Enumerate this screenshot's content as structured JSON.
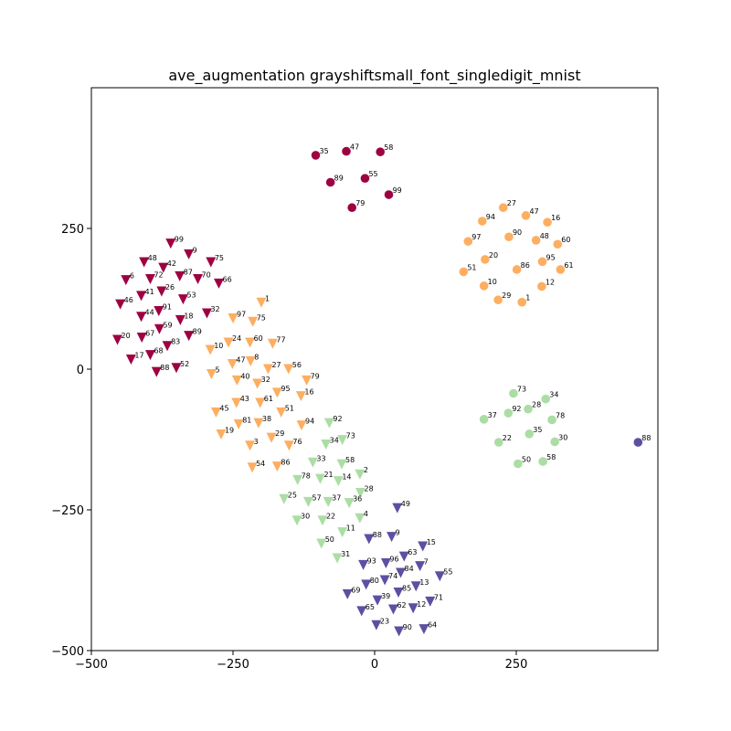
{
  "chart_data": {
    "type": "scatter",
    "title": "ave_augmentation grayshiftsmall_font_singledigit_mnist",
    "xlabel": "",
    "ylabel": "",
    "xlim": [
      -500,
      500
    ],
    "ylim": [
      -500,
      500
    ],
    "xticks": [
      -500,
      -250,
      0,
      250
    ],
    "yticks": [
      -500,
      -250,
      0,
      250
    ],
    "xtick_labels": [
      "−500",
      "−250",
      "0",
      "250"
    ],
    "ytick_labels": [
      "−500",
      "−250",
      "0",
      "250"
    ],
    "grid": false,
    "colors": {
      "darkred": "#9e0142",
      "orange": "#fdae61",
      "lightgreen": "#abdda4",
      "purple": "#5e4fa2"
    },
    "series": [
      {
        "marker": "circle",
        "color": "darkred",
        "points": [
          {
            "x": -104,
            "y": 380,
            "label": "35"
          },
          {
            "x": -50,
            "y": 387,
            "label": "47"
          },
          {
            "x": 10,
            "y": 386,
            "label": "58"
          },
          {
            "x": -78,
            "y": 332,
            "label": "89"
          },
          {
            "x": -17,
            "y": 339,
            "label": "55"
          },
          {
            "x": -40,
            "y": 287,
            "label": "79"
          },
          {
            "x": 25,
            "y": 310,
            "label": "99"
          }
        ]
      },
      {
        "marker": "circle",
        "color": "orange",
        "points": [
          {
            "x": 227,
            "y": 287,
            "label": "27"
          },
          {
            "x": 267,
            "y": 273,
            "label": "47"
          },
          {
            "x": 190,
            "y": 263,
            "label": "94"
          },
          {
            "x": 305,
            "y": 261,
            "label": "16"
          },
          {
            "x": 237,
            "y": 235,
            "label": "90"
          },
          {
            "x": 285,
            "y": 229,
            "label": "48"
          },
          {
            "x": 165,
            "y": 227,
            "label": "97"
          },
          {
            "x": 323,
            "y": 222,
            "label": "60"
          },
          {
            "x": 195,
            "y": 195,
            "label": "20"
          },
          {
            "x": 296,
            "y": 191,
            "label": "95"
          },
          {
            "x": 157,
            "y": 173,
            "label": "51"
          },
          {
            "x": 251,
            "y": 177,
            "label": "86"
          },
          {
            "x": 328,
            "y": 177,
            "label": "61"
          },
          {
            "x": 193,
            "y": 148,
            "label": "10"
          },
          {
            "x": 295,
            "y": 147,
            "label": "12"
          },
          {
            "x": 218,
            "y": 123,
            "label": "29"
          },
          {
            "x": 260,
            "y": 119,
            "label": "1"
          }
        ]
      },
      {
        "marker": "circle",
        "color": "lightgreen",
        "points": [
          {
            "x": 245,
            "y": -43,
            "label": "73"
          },
          {
            "x": 302,
            "y": -53,
            "label": "34"
          },
          {
            "x": 271,
            "y": -71,
            "label": "28"
          },
          {
            "x": 236,
            "y": -78,
            "label": "92"
          },
          {
            "x": 193,
            "y": -89,
            "label": "37"
          },
          {
            "x": 313,
            "y": -90,
            "label": "78"
          },
          {
            "x": 273,
            "y": -115,
            "label": "35"
          },
          {
            "x": 219,
            "y": -130,
            "label": "22"
          },
          {
            "x": 318,
            "y": -129,
            "label": "30"
          },
          {
            "x": 253,
            "y": -168,
            "label": "50"
          },
          {
            "x": 297,
            "y": -164,
            "label": "58"
          }
        ]
      },
      {
        "marker": "circle",
        "color": "purple",
        "points": [
          {
            "x": 465,
            "y": -130,
            "label": "88"
          }
        ]
      },
      {
        "marker": "triangle",
        "color": "darkred",
        "points": [
          {
            "x": -360,
            "y": 223,
            "label": "99"
          },
          {
            "x": -328,
            "y": 204,
            "label": "9"
          },
          {
            "x": -289,
            "y": 190,
            "label": "75"
          },
          {
            "x": -407,
            "y": 190,
            "label": "48"
          },
          {
            "x": -373,
            "y": 180,
            "label": "42"
          },
          {
            "x": -344,
            "y": 165,
            "label": "87"
          },
          {
            "x": -312,
            "y": 160,
            "label": "70"
          },
          {
            "x": -439,
            "y": 158,
            "label": "6"
          },
          {
            "x": -396,
            "y": 160,
            "label": "72"
          },
          {
            "x": -275,
            "y": 152,
            "label": "66"
          },
          {
            "x": -376,
            "y": 138,
            "label": "26"
          },
          {
            "x": -412,
            "y": 130,
            "label": "41"
          },
          {
            "x": -338,
            "y": 124,
            "label": "53"
          },
          {
            "x": -449,
            "y": 115,
            "label": "46"
          },
          {
            "x": -381,
            "y": 103,
            "label": "91"
          },
          {
            "x": -296,
            "y": 99,
            "label": "32"
          },
          {
            "x": -412,
            "y": 93,
            "label": "44"
          },
          {
            "x": -343,
            "y": 87,
            "label": "18"
          },
          {
            "x": -380,
            "y": 71,
            "label": "59"
          },
          {
            "x": -328,
            "y": 59,
            "label": "89"
          },
          {
            "x": -454,
            "y": 52,
            "label": "20"
          },
          {
            "x": -411,
            "y": 56,
            "label": "67"
          },
          {
            "x": -366,
            "y": 41,
            "label": "83"
          },
          {
            "x": -396,
            "y": 25,
            "label": "68"
          },
          {
            "x": -430,
            "y": 17,
            "label": "17"
          },
          {
            "x": -350,
            "y": 2,
            "label": "52"
          },
          {
            "x": -385,
            "y": -5,
            "label": "88"
          }
        ]
      },
      {
        "marker": "triangle",
        "color": "orange",
        "points": [
          {
            "x": -200,
            "y": 118,
            "label": "1"
          },
          {
            "x": -250,
            "y": 90,
            "label": "97"
          },
          {
            "x": -215,
            "y": 84,
            "label": "75"
          },
          {
            "x": -258,
            "y": 47,
            "label": "24"
          },
          {
            "x": -220,
            "y": 47,
            "label": "60"
          },
          {
            "x": -180,
            "y": 45,
            "label": "77"
          },
          {
            "x": -290,
            "y": 34,
            "label": "10"
          },
          {
            "x": -251,
            "y": 9,
            "label": "47"
          },
          {
            "x": -219,
            "y": 14,
            "label": "8"
          },
          {
            "x": -188,
            "y": 0,
            "label": "27"
          },
          {
            "x": -152,
            "y": 0,
            "label": "56"
          },
          {
            "x": -288,
            "y": -9,
            "label": "5"
          },
          {
            "x": -243,
            "y": -20,
            "label": "40"
          },
          {
            "x": -207,
            "y": -26,
            "label": "32"
          },
          {
            "x": -120,
            "y": -20,
            "label": "79"
          },
          {
            "x": -172,
            "y": -42,
            "label": "95"
          },
          {
            "x": -130,
            "y": -48,
            "label": "16"
          },
          {
            "x": -244,
            "y": -60,
            "label": "43"
          },
          {
            "x": -202,
            "y": -60,
            "label": "61"
          },
          {
            "x": -280,
            "y": -77,
            "label": "45"
          },
          {
            "x": -165,
            "y": -77,
            "label": "51"
          },
          {
            "x": -240,
            "y": -98,
            "label": "81"
          },
          {
            "x": -205,
            "y": -96,
            "label": "38"
          },
          {
            "x": -129,
            "y": -100,
            "label": "94"
          },
          {
            "x": -271,
            "y": -116,
            "label": "19"
          },
          {
            "x": -182,
            "y": -122,
            "label": "29"
          },
          {
            "x": -220,
            "y": -136,
            "label": "3"
          },
          {
            "x": -151,
            "y": -136,
            "label": "76"
          },
          {
            "x": -216,
            "y": -175,
            "label": "54"
          },
          {
            "x": -172,
            "y": -173,
            "label": "86"
          }
        ]
      },
      {
        "marker": "triangle",
        "color": "lightgreen",
        "points": [
          {
            "x": -80,
            "y": -96,
            "label": "92"
          },
          {
            "x": -57,
            "y": -126,
            "label": "73"
          },
          {
            "x": -86,
            "y": -134,
            "label": "34"
          },
          {
            "x": -109,
            "y": -166,
            "label": "33"
          },
          {
            "x": -58,
            "y": -169,
            "label": "58"
          },
          {
            "x": -26,
            "y": -187,
            "label": "2"
          },
          {
            "x": -136,
            "y": -197,
            "label": "78"
          },
          {
            "x": -96,
            "y": -195,
            "label": "21"
          },
          {
            "x": -64,
            "y": -199,
            "label": "14"
          },
          {
            "x": -25,
            "y": -220,
            "label": "28"
          },
          {
            "x": -160,
            "y": -231,
            "label": "25"
          },
          {
            "x": -117,
            "y": -236,
            "label": "57"
          },
          {
            "x": -82,
            "y": -236,
            "label": "37"
          },
          {
            "x": -45,
            "y": -238,
            "label": "36"
          },
          {
            "x": -137,
            "y": -269,
            "label": "30"
          },
          {
            "x": -92,
            "y": -269,
            "label": "22"
          },
          {
            "x": -26,
            "y": -265,
            "label": "4"
          },
          {
            "x": -57,
            "y": -290,
            "label": "11"
          },
          {
            "x": -94,
            "y": -310,
            "label": "50"
          },
          {
            "x": -66,
            "y": -336,
            "label": "31"
          }
        ]
      },
      {
        "marker": "triangle",
        "color": "purple",
        "points": [
          {
            "x": 40,
            "y": -247,
            "label": "49"
          },
          {
            "x": -10,
            "y": -302,
            "label": "88"
          },
          {
            "x": 30,
            "y": -298,
            "label": "9"
          },
          {
            "x": 85,
            "y": -315,
            "label": "15"
          },
          {
            "x": 52,
            "y": -333,
            "label": "63"
          },
          {
            "x": 20,
            "y": -345,
            "label": "96"
          },
          {
            "x": -20,
            "y": -348,
            "label": "93"
          },
          {
            "x": 80,
            "y": -350,
            "label": "7"
          },
          {
            "x": 46,
            "y": -362,
            "label": "84"
          },
          {
            "x": 115,
            "y": -368,
            "label": "55"
          },
          {
            "x": 18,
            "y": -375,
            "label": "74"
          },
          {
            "x": -15,
            "y": -383,
            "label": "80"
          },
          {
            "x": 73,
            "y": -386,
            "label": "13"
          },
          {
            "x": 42,
            "y": -397,
            "label": "85"
          },
          {
            "x": -48,
            "y": -400,
            "label": "69"
          },
          {
            "x": 5,
            "y": -411,
            "label": "39"
          },
          {
            "x": 98,
            "y": -413,
            "label": "71"
          },
          {
            "x": 68,
            "y": -425,
            "label": "12"
          },
          {
            "x": 33,
            "y": -427,
            "label": "62"
          },
          {
            "x": -23,
            "y": -430,
            "label": "65"
          },
          {
            "x": 3,
            "y": -455,
            "label": "23"
          },
          {
            "x": 43,
            "y": -466,
            "label": "90"
          },
          {
            "x": 87,
            "y": -462,
            "label": "64"
          }
        ]
      }
    ]
  }
}
